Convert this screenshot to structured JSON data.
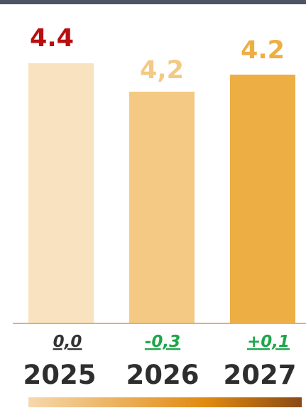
{
  "colors": {
    "top_band": "#4d5463",
    "axis": "#e0b070",
    "bar_2025": "#f8e2c0",
    "bar_2026": "#f3c983",
    "bar_2027": "#edae44",
    "label_2025": "#b80f0f",
    "label_2026": "#f3c983",
    "label_2027": "#edae44",
    "delta_neutral": "#333333",
    "delta_positive_effect": "#1ea64a",
    "year_text": "#2e2e2e",
    "gradient_start": "#f6d8ad",
    "gradient_mid": "#e08a10",
    "gradient_end": "#8a4a16"
  },
  "chart_data": {
    "type": "bar",
    "categories": [
      "2025",
      "2026",
      "2027"
    ],
    "values": [
      4.4,
      4.2,
      4.2
    ],
    "value_labels": [
      "4.4",
      "4,2",
      "4.2"
    ],
    "deltas": [
      "0,0",
      "-0,3",
      "+0,1"
    ],
    "title": "",
    "xlabel": "",
    "ylabel": "",
    "grid": false,
    "legend": "none"
  }
}
